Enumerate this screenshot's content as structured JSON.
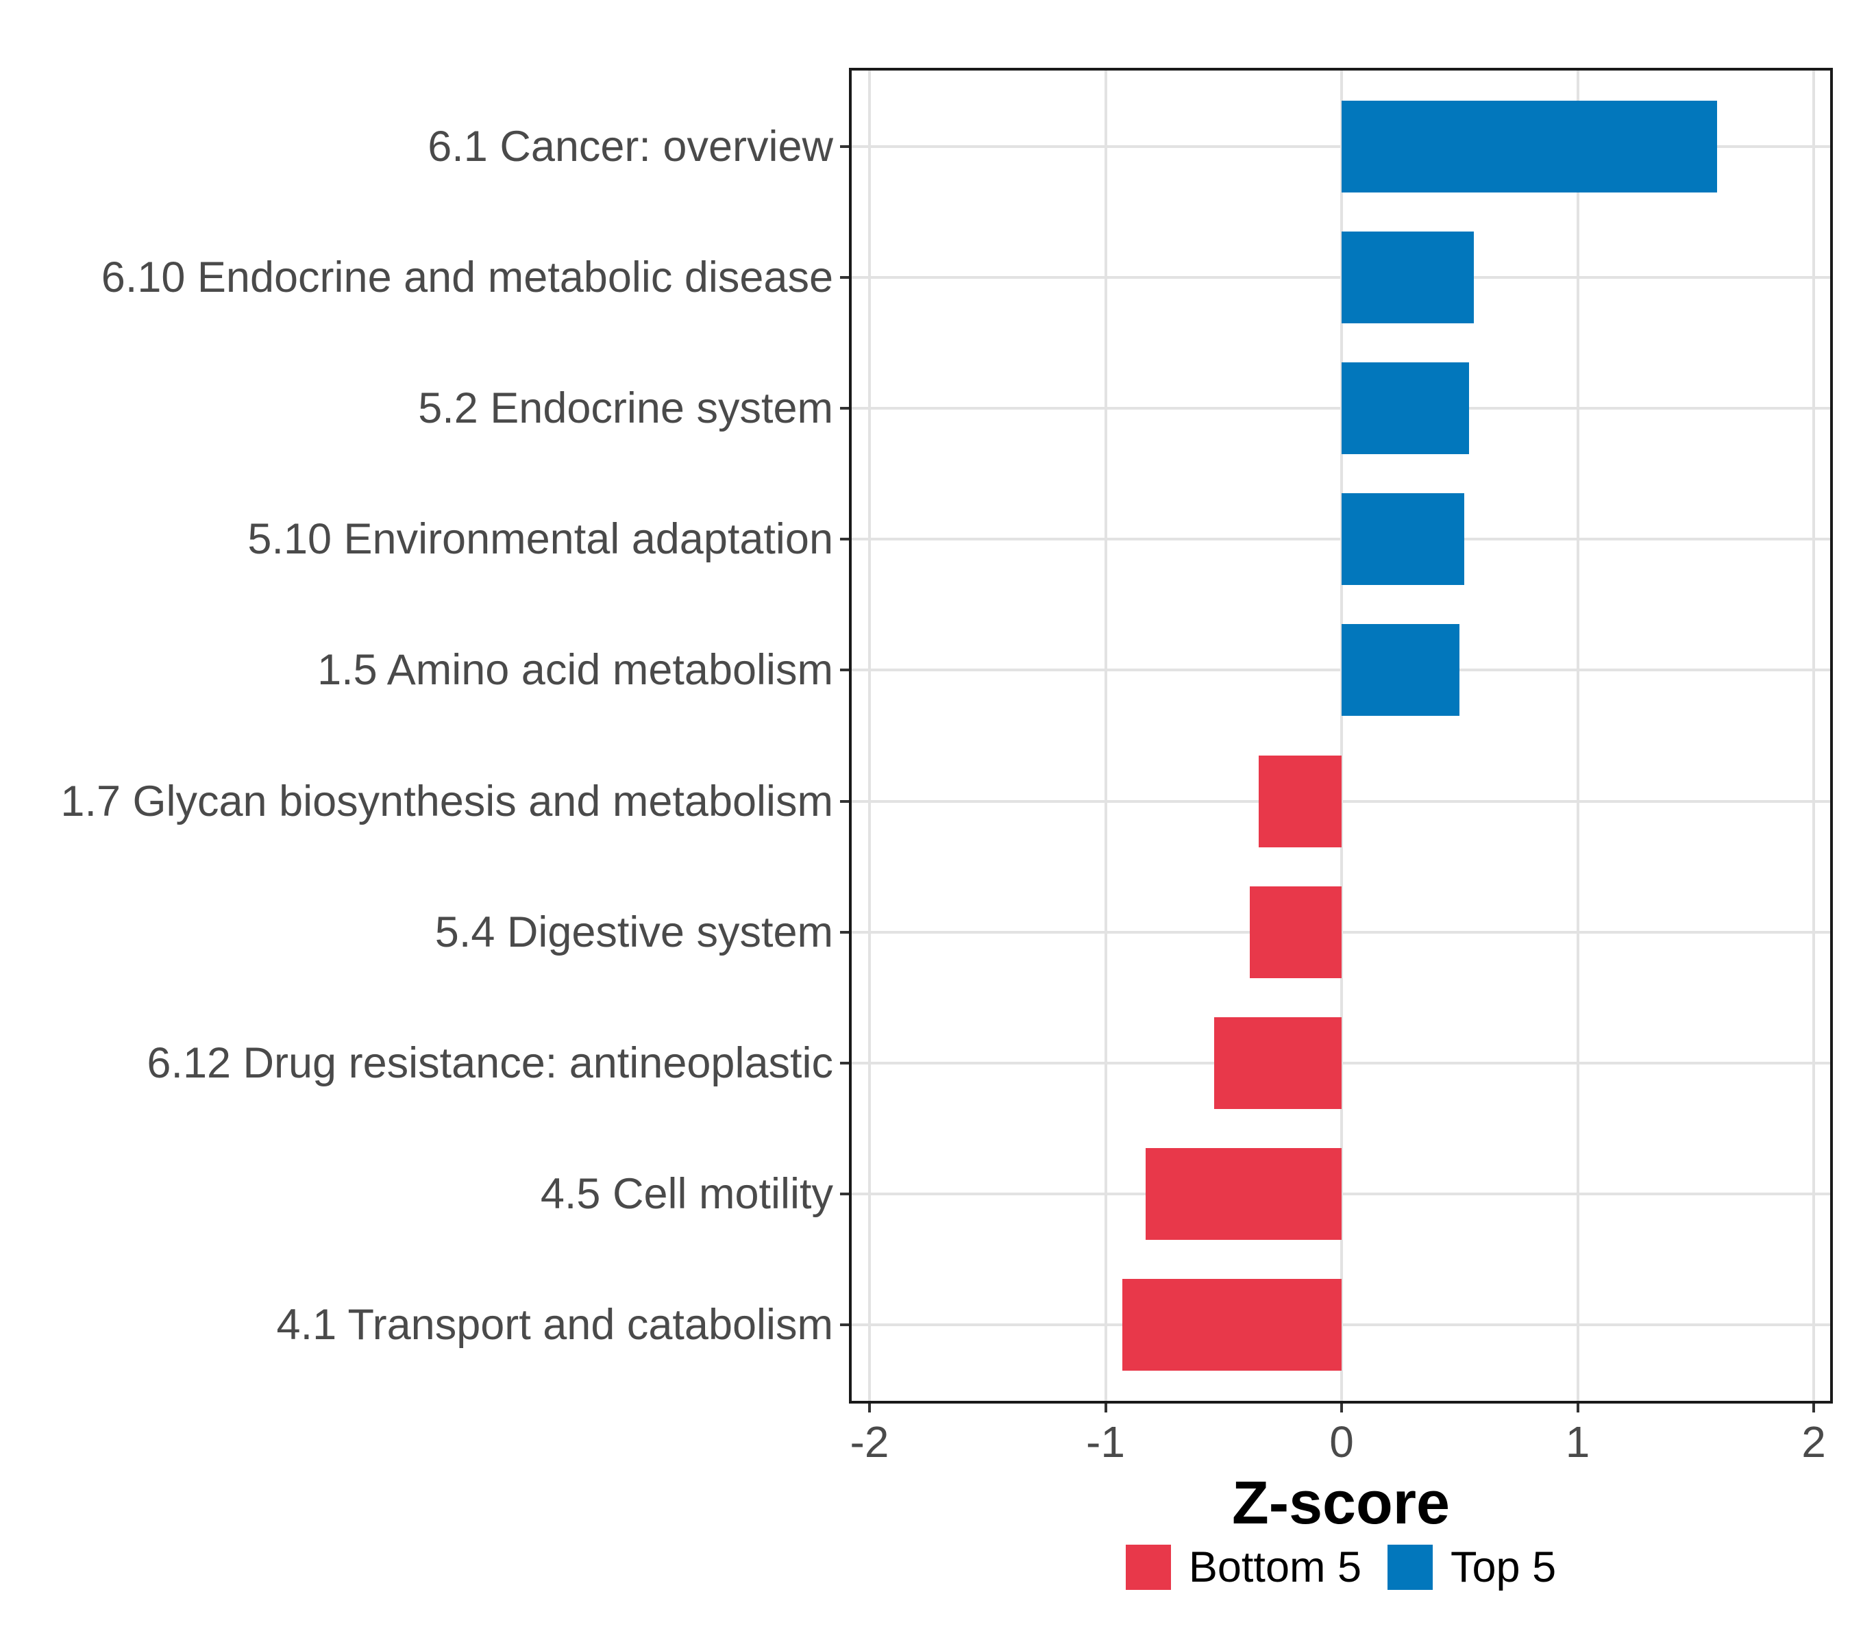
{
  "chart_data": {
    "type": "bar",
    "orientation": "horizontal",
    "title": "",
    "xlabel": "Z-score",
    "ylabel": "",
    "categories": [
      "6.1 Cancer: overview",
      "6.10 Endocrine and metabolic disease",
      "5.2 Endocrine system",
      "5.10 Environmental adaptation",
      "1.5 Amino acid metabolism",
      "1.7 Glycan biosynthesis and metabolism",
      "5.4 Digestive system",
      "6.12 Drug resistance: antineoplastic",
      "4.5 Cell motility",
      "4.1 Transport and catabolism"
    ],
    "values": [
      1.59,
      0.56,
      0.54,
      0.52,
      0.5,
      -0.35,
      -0.39,
      -0.54,
      -0.83,
      -0.93
    ],
    "groups": [
      "Top 5",
      "Top 5",
      "Top 5",
      "Top 5",
      "Top 5",
      "Bottom 5",
      "Bottom 5",
      "Bottom 5",
      "Bottom 5",
      "Bottom 5"
    ],
    "series_colors": {
      "Top 5": "#0277BC",
      "Bottom 5": "#E8384A"
    },
    "xticks": [
      -2,
      -1,
      0,
      1,
      2
    ],
    "xtick_labels": [
      "-2",
      "-1",
      "0",
      "1",
      "2"
    ],
    "xlim": [
      -2.09,
      2.09
    ],
    "grid": true,
    "legend_position": "bottom",
    "legend": [
      {
        "label": "Bottom 5",
        "color": "#E8384A"
      },
      {
        "label": "Top 5",
        "color": "#0277BC"
      }
    ]
  }
}
